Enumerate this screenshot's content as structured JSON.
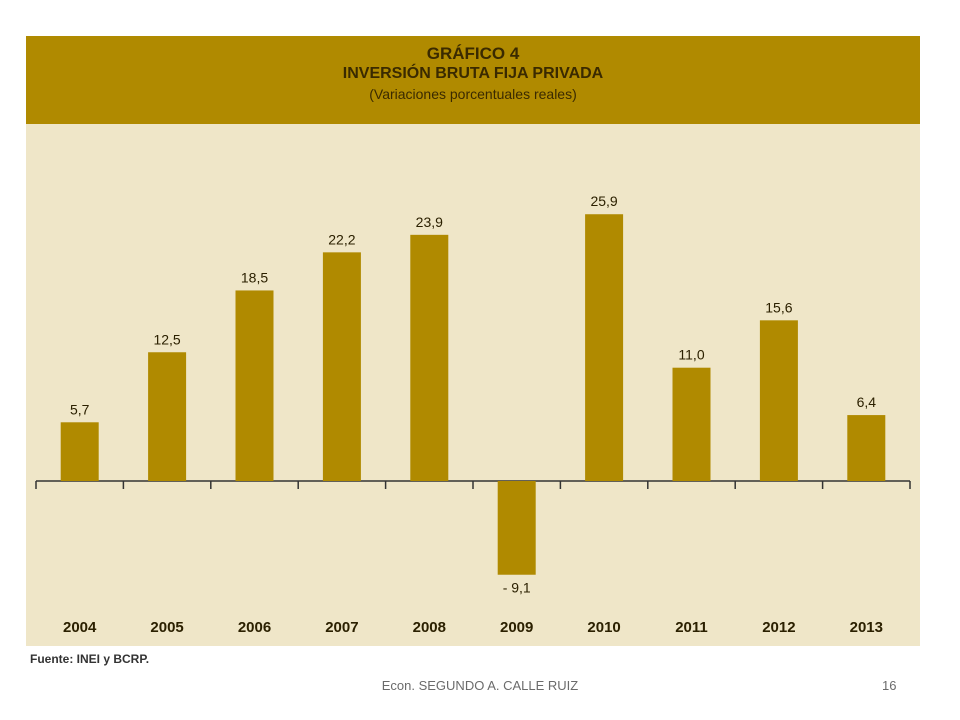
{
  "chart_data": {
    "type": "bar",
    "title": "GRÁFICO 4",
    "subtitle": "INVERSIÓN BRUTA FIJA PRIVADA",
    "unit_note": "(Variaciones porcentuales reales)",
    "categories": [
      "2004",
      "2005",
      "2006",
      "2007",
      "2008",
      "2009",
      "2010",
      "2011",
      "2012",
      "2013"
    ],
    "values": [
      5.7,
      12.5,
      18.5,
      22.2,
      23.9,
      -9.1,
      25.9,
      11.0,
      15.6,
      6.4
    ],
    "value_labels": [
      "5,7",
      "12,5",
      "18,5",
      "22,2",
      "23,9",
      "- 9,1",
      "25,9",
      "11,0",
      "15,6",
      "6,4"
    ],
    "ylim": [
      -10,
      30
    ],
    "grid": false,
    "legend": "none",
    "source": "Fuente: INEI y BCRP.",
    "colors": {
      "bar": "#b08a00",
      "header": "#b08a00",
      "plot_bg": "#efe6c8",
      "text": "#3a2a00"
    }
  },
  "footer": {
    "author": "Econ. SEGUNDO A. CALLE RUIZ",
    "page": "16"
  }
}
